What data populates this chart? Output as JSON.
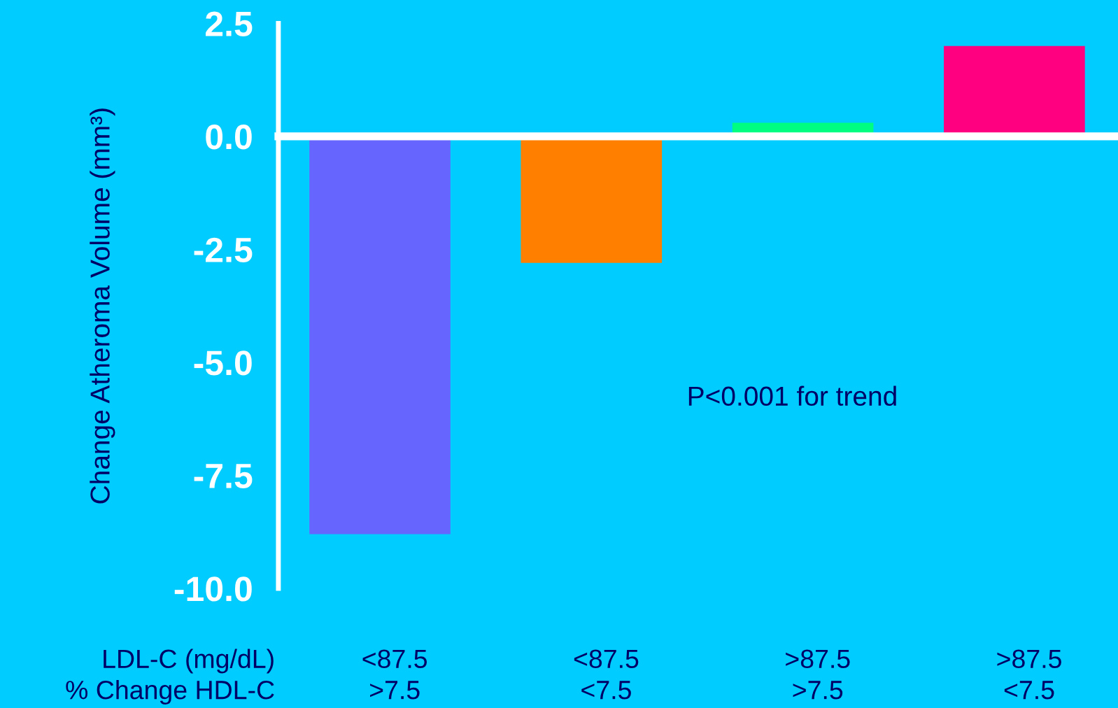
{
  "chart_data": {
    "type": "bar",
    "ylabel": "Change Atheroma Volume (mm³)",
    "categories": [
      "<87.5\n>7.5",
      "<87.5\n<7.5",
      ">87.5\n>7.5",
      ">87.5\n<7.5"
    ],
    "values": [
      -8.8,
      -2.8,
      0.3,
      2.0
    ],
    "colors": [
      "#6666ff",
      "#ff8000",
      "#00ff80",
      "#ff0080"
    ],
    "ylim": [
      -10,
      2.5
    ],
    "yticks": [
      {
        "value": 2.5,
        "label": "2.5"
      },
      {
        "value": 0,
        "label": "0.0"
      },
      {
        "value": -2.5,
        "label": "-2.5"
      },
      {
        "value": -5,
        "label": "-5.0"
      },
      {
        "value": -7.5,
        "label": "-7.5"
      },
      {
        "value": -10,
        "label": "-10.0"
      }
    ],
    "legend": false,
    "annotations": [
      {
        "text": "P<0.001 for trend"
      },
      "LDL-C (mg/dL)\n% Change HDL-C"
    ]
  }
}
